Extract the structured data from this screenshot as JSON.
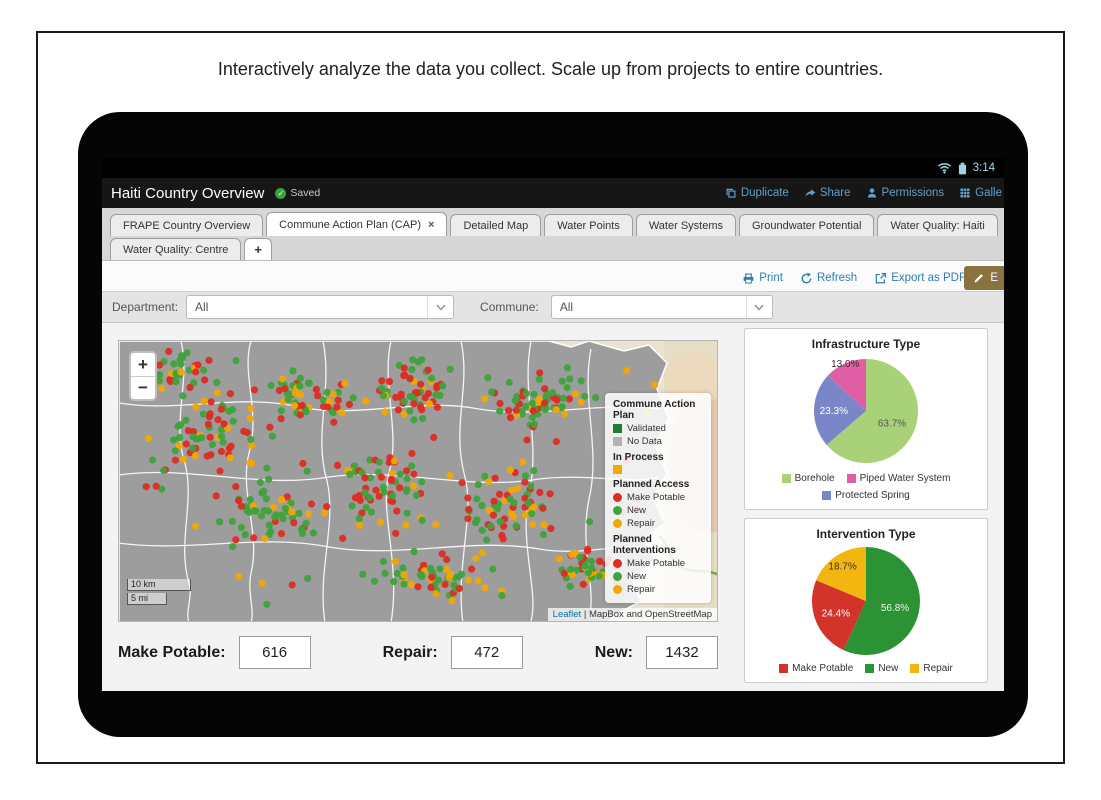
{
  "caption": "Interactively analyze the data you collect. Scale up from projects to entire countries.",
  "status_bar": {
    "time": "3:14"
  },
  "header": {
    "title": "Haiti Country Overview",
    "saved": "Saved",
    "actions": [
      {
        "label": "Duplicate"
      },
      {
        "label": "Share"
      },
      {
        "label": "Permissions"
      },
      {
        "label": "Galle"
      }
    ]
  },
  "tabs": {
    "row1": [
      {
        "label": "FRAPE Country Overview"
      },
      {
        "label": "Commune Action Plan (CAP)",
        "close": "×",
        "active": true
      },
      {
        "label": "Detailed Map"
      },
      {
        "label": "Water Points"
      },
      {
        "label": "Water Systems"
      },
      {
        "label": "Groundwater Potential"
      },
      {
        "label": "Water Quality: Haiti"
      }
    ],
    "row2": [
      {
        "label": "Water Quality: Centre"
      },
      {
        "label": "+"
      }
    ]
  },
  "toolbar": {
    "print": "Print",
    "refresh": "Refresh",
    "export_pdf": "Export as PDF",
    "edit": "E"
  },
  "filters": {
    "department_label": "Department:",
    "department_value": "All",
    "commune_label": "Commune:",
    "commune_value": "All"
  },
  "map": {
    "zoom_in": "+",
    "zoom_out": "−",
    "scale": {
      "km": "10 km",
      "mi": "5 mi"
    },
    "attribution": {
      "leaflet": "Leaflet",
      "rest": " | MapBox and OpenStreetMap"
    },
    "legend": {
      "cap_title": "Commune Action Plan",
      "cap_items": [
        {
          "label": "Validated",
          "color": "#1e7d32"
        },
        {
          "label": "No Data",
          "color": "#b3b3b3"
        }
      ],
      "in_process_title": "In Process",
      "in_process_items": [
        {
          "label": "",
          "color": "#f2a800"
        }
      ],
      "access_title": "Planned Access",
      "access_items": [
        {
          "label": "Make Potable",
          "color": "#dd2c23"
        },
        {
          "label": "New",
          "color": "#3ea33c"
        },
        {
          "label": "Repair",
          "color": "#f2a800"
        }
      ],
      "interventions_title": "Planned Interventions",
      "interventions_items": [
        {
          "label": "Make Potable",
          "color": "#dd2c23"
        },
        {
          "label": "New",
          "color": "#3ea33c"
        },
        {
          "label": "Repair",
          "color": "#f2a800"
        }
      ]
    },
    "dots": {
      "seed": 7,
      "radius": 3.6,
      "colors": [
        "#3ea33c",
        "#dd2c23",
        "#f2a800"
      ],
      "weights": [
        0.44,
        0.31,
        0.25
      ],
      "clusters": [
        [
          90,
          85,
          55,
          45,
          60
        ],
        [
          190,
          55,
          45,
          30,
          55
        ],
        [
          295,
          48,
          50,
          30,
          55
        ],
        [
          420,
          62,
          55,
          35,
          65
        ],
        [
          150,
          170,
          60,
          45,
          55
        ],
        [
          265,
          150,
          55,
          45,
          65
        ],
        [
          390,
          165,
          55,
          45,
          60
        ],
        [
          320,
          235,
          70,
          28,
          55
        ],
        [
          470,
          225,
          40,
          28,
          40
        ],
        [
          60,
          35,
          35,
          25,
          30
        ]
      ],
      "scatter": 70
    }
  },
  "chart_data": [
    {
      "type": "pie",
      "title": "Infrastructure Type",
      "series": [
        {
          "name": "Borehole",
          "value": 63.7,
          "label": "63.7%",
          "color": "#a9d178",
          "label_color": "#555555",
          "label_r": 0.55
        },
        {
          "name": "Protected Spring",
          "value": 23.3,
          "label": "23.3%",
          "color": "#7b86c8",
          "label_color": "#ffffff",
          "label_r": 0.62
        },
        {
          "name": "Piped Water System",
          "value": 13.0,
          "label": "13.0%",
          "color": "#e05fa4",
          "label_color": "#333333",
          "label_r": 1.0
        }
      ],
      "legend": [
        {
          "label": "Borehole",
          "color": "#a9d178"
        },
        {
          "label": "Piped Water System",
          "color": "#e05fa4"
        },
        {
          "label": "Protected Spring",
          "color": "#7b86c8"
        }
      ]
    },
    {
      "type": "pie",
      "title": "Intervention Type",
      "series": [
        {
          "name": "New",
          "value": 56.8,
          "label": "56.8%",
          "color": "#2c9334",
          "label_color": "#eef5ee",
          "label_r": 0.55
        },
        {
          "name": "Make Potable",
          "value": 24.4,
          "label": "24.4%",
          "color": "#d2342a",
          "label_color": "#ffffff",
          "label_r": 0.6
        },
        {
          "name": "Repair",
          "value": 18.7,
          "label": "18.7%",
          "color": "#f3b50f",
          "label_color": "#333333",
          "label_r": 0.78
        }
      ],
      "legend": [
        {
          "label": "Make Potable",
          "color": "#d2342a"
        },
        {
          "label": "New",
          "color": "#2c9334"
        },
        {
          "label": "Repair",
          "color": "#f3b50f"
        }
      ]
    }
  ],
  "stats": [
    {
      "label": "Make Potable:",
      "value": "616"
    },
    {
      "label": "Repair:",
      "value": "472"
    },
    {
      "label": "New:",
      "value": "1432"
    }
  ],
  "icons": {
    "saved-check": "✓",
    "tab-close": "×",
    "zoom-in": "+",
    "zoom-out": "−",
    "chevron-down": "v-shape",
    "duplicate": "overlapping-rects",
    "share": "curved-arrow",
    "permissions": "person",
    "gallery": "grid",
    "print": "printer",
    "refresh": "circular-arrow",
    "export-pdf": "box-arrow-out",
    "edit": "pencil",
    "wifi": "arcs",
    "battery": "battery-block"
  }
}
